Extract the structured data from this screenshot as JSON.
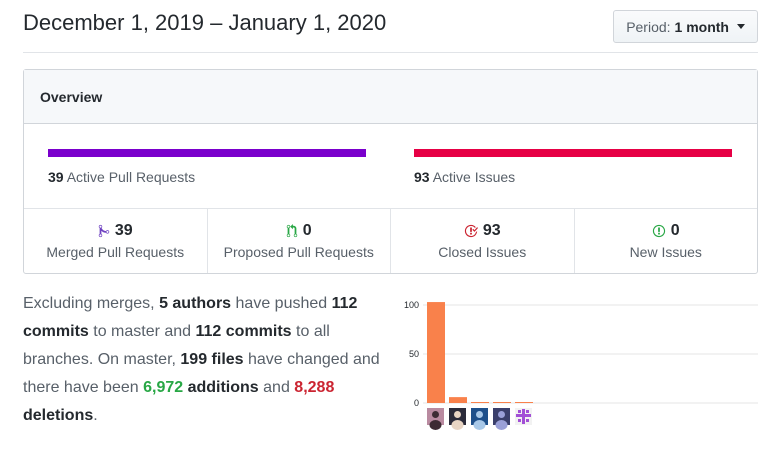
{
  "header": {
    "date_range": "December 1, 2019 – January 1, 2020",
    "period_label": "Period:",
    "period_value": "1 month"
  },
  "overview": {
    "title": "Overview",
    "active_prs": {
      "count": "39",
      "label": "Active Pull Requests",
      "color": "#6f42c1",
      "bar_color": "#7a00cc"
    },
    "active_issues": {
      "count": "93",
      "label": "Active Issues",
      "bar_color": "#e60045"
    },
    "stats": [
      {
        "icon": "merged-pr-icon",
        "count": "39",
        "label": "Merged Pull Requests",
        "color": "#6f42c1"
      },
      {
        "icon": "proposed-pr-icon",
        "count": "0",
        "label": "Proposed Pull Requests",
        "color": "#28a745"
      },
      {
        "icon": "closed-issue-icon",
        "count": "93",
        "label": "Closed Issues",
        "color": "#cb2431"
      },
      {
        "icon": "new-issue-icon",
        "count": "0",
        "label": "New Issues",
        "color": "#28a745"
      }
    ]
  },
  "summary": {
    "t1": "Excluding merges, ",
    "authors": "5 authors",
    "t2": " have pushed ",
    "commits1": "112 commits",
    "t3": " to master and ",
    "commits2": "112 commits",
    "t4": " to all branches. On master, ",
    "files": "199 files",
    "t5": " have changed and there have been ",
    "additions": "6,972",
    "t6": " additions",
    "t7": " and ",
    "deletions": "8,288",
    "t8": " deletions",
    "t9": "."
  },
  "chart_data": {
    "type": "bar",
    "categories": [
      "author-1",
      "author-2",
      "author-3",
      "author-4",
      "author-5"
    ],
    "values": [
      103,
      6,
      1,
      1,
      1
    ],
    "yticks": [
      "0",
      "50",
      "100"
    ],
    "ylim": [
      0,
      100
    ],
    "bar_color": "#f9814b",
    "avatars": [
      "avatar-1",
      "avatar-2",
      "avatar-3",
      "avatar-4",
      "avatar-5"
    ]
  }
}
